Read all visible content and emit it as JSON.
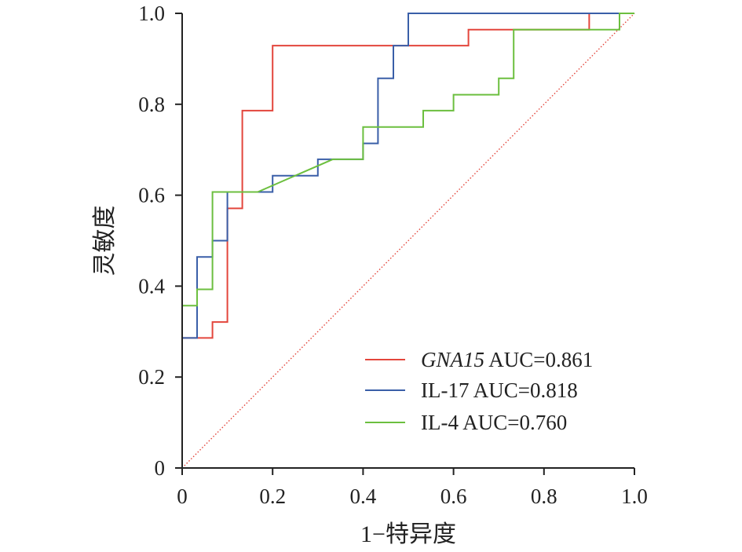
{
  "chart_data": {
    "type": "line",
    "xlabel": "1−特异度",
    "ylabel": "灵敏度",
    "xlim": [
      0,
      1
    ],
    "ylim": [
      0,
      1
    ],
    "x_ticks": [
      "0",
      "0.2",
      "0.4",
      "0.6",
      "0.8",
      "1.0"
    ],
    "y_ticks": [
      "0",
      "0.2",
      "0.4",
      "0.6",
      "0.8",
      "1.0"
    ],
    "grid": false,
    "legend_position": "bottom-right",
    "reference_line": {
      "style": "dotted",
      "color": "#e3463c",
      "from": [
        0,
        0
      ],
      "to": [
        1,
        1
      ]
    },
    "series": [
      {
        "name_main": "GNA15",
        "name_suffix": " AUC=0.861",
        "color": "#e3463c",
        "step": true,
        "x": [
          0,
          0,
          0.067,
          0.067,
          0.1,
          0.1,
          0.133,
          0.133,
          0.2,
          0.2,
          0.633,
          0.633,
          0.9,
          0.9,
          1.0
        ],
        "y": [
          0,
          0.286,
          0.286,
          0.321,
          0.321,
          0.571,
          0.571,
          0.786,
          0.786,
          0.929,
          0.929,
          0.964,
          0.964,
          1.0,
          1.0
        ]
      },
      {
        "name_main": "IL-17",
        "name_suffix": " AUC=0.818",
        "color": "#3a5fa8",
        "step": false,
        "x": [
          0,
          0,
          0.033,
          0.033,
          0.067,
          0.067,
          0.1,
          0.1,
          0.2,
          0.2,
          0.3,
          0.3,
          0.4,
          0.4,
          0.433,
          0.433,
          0.467,
          0.467,
          0.5,
          0.5,
          1.0
        ],
        "y": [
          0,
          0.286,
          0.286,
          0.464,
          0.464,
          0.5,
          0.5,
          0.607,
          0.607,
          0.643,
          0.643,
          0.679,
          0.679,
          0.714,
          0.714,
          0.857,
          0.857,
          0.929,
          0.929,
          1.0,
          1.0
        ]
      },
      {
        "name_main": "IL-4",
        "name_suffix": " AUC=0.760",
        "color": "#6cbf3f",
        "step": false,
        "x": [
          0,
          0,
          0.033,
          0.033,
          0.067,
          0.067,
          0.167,
          0.333,
          0.4,
          0.4,
          0.533,
          0.533,
          0.6,
          0.6,
          0.7,
          0.7,
          0.733,
          0.733,
          0.967,
          0.967,
          1.0
        ],
        "y": [
          0,
          0.357,
          0.357,
          0.393,
          0.393,
          0.607,
          0.607,
          0.679,
          0.679,
          0.75,
          0.75,
          0.786,
          0.786,
          0.821,
          0.821,
          0.857,
          0.857,
          0.964,
          0.964,
          1.0,
          1.0
        ]
      }
    ]
  }
}
